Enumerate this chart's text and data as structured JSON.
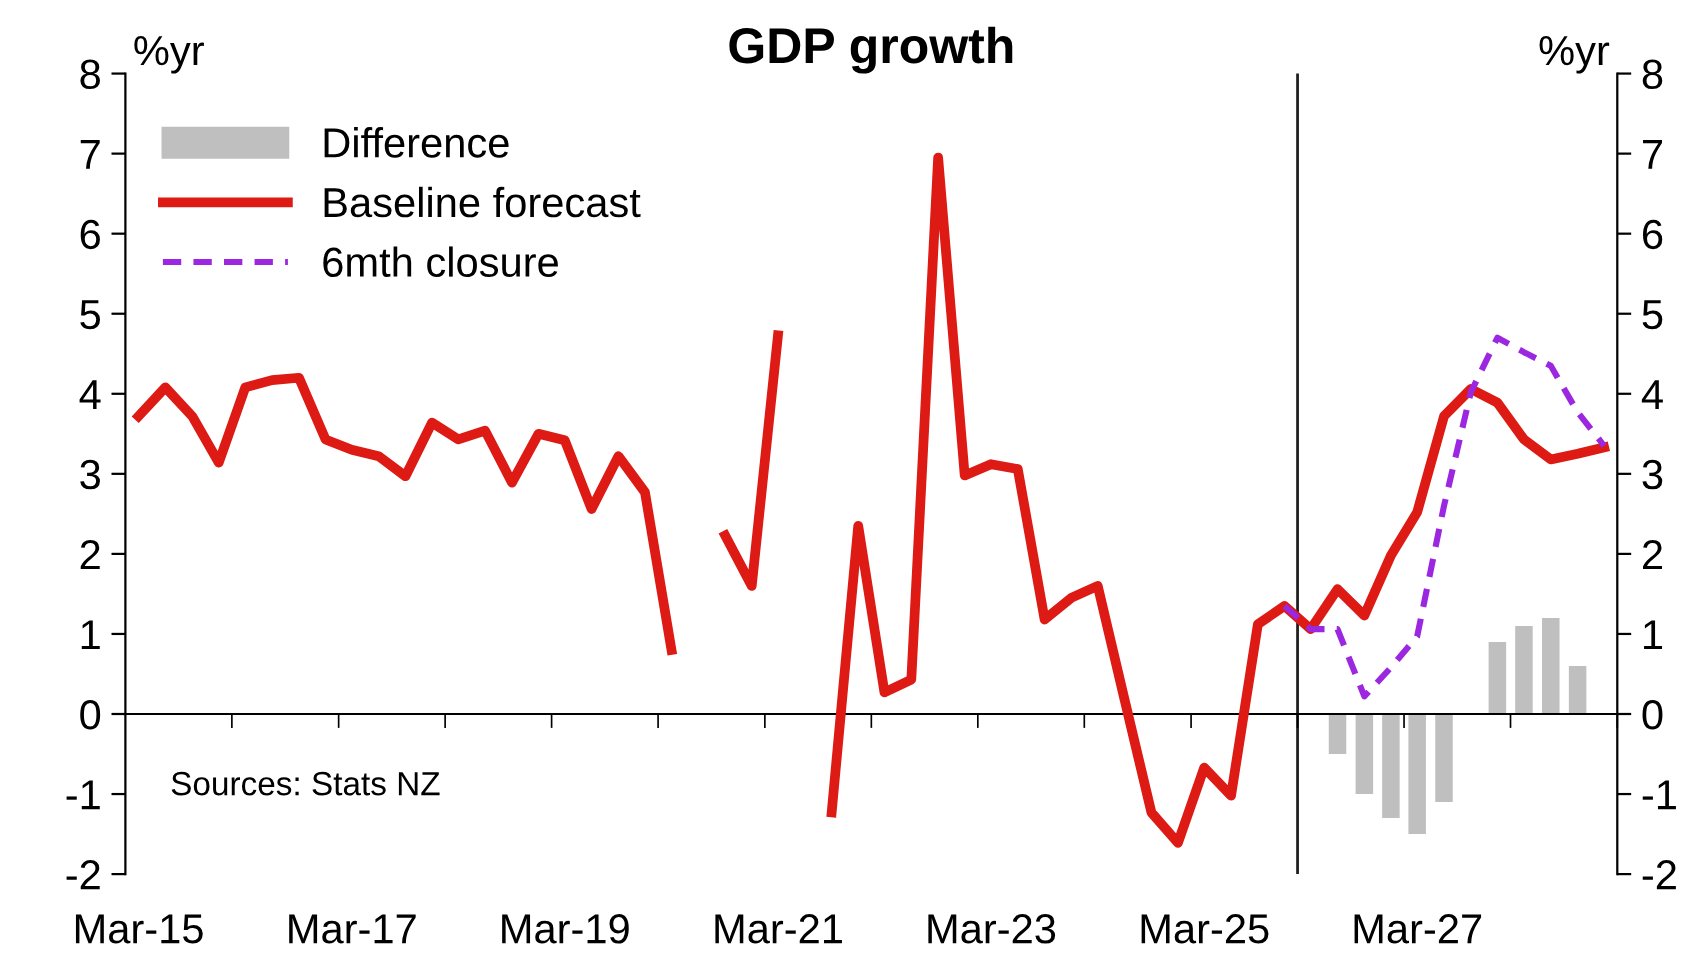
{
  "chart_data": {
    "type": "line",
    "title": "GDP growth",
    "ylabel": "%yr",
    "y2label": "%yr",
    "x": [
      "2015-03",
      "2015-06",
      "2015-09",
      "2015-12",
      "2016-03",
      "2016-06",
      "2016-09",
      "2016-12",
      "2017-03",
      "2017-06",
      "2017-09",
      "2017-12",
      "2018-03",
      "2018-06",
      "2018-09",
      "2018-12",
      "2019-03",
      "2019-06",
      "2019-09",
      "2019-12",
      "2020-03",
      "2020-06",
      "2020-09",
      "2020-12",
      "2021-03",
      "2021-06",
      "2021-09",
      "2021-12",
      "2022-03",
      "2022-06",
      "2022-09",
      "2022-12",
      "2023-03",
      "2023-06",
      "2023-09",
      "2023-12",
      "2024-03",
      "2024-06",
      "2024-09",
      "2024-12",
      "2025-03",
      "2025-06",
      "2025-09",
      "2025-12",
      "2026-03",
      "2026-06",
      "2026-09",
      "2026-12",
      "2027-03",
      "2027-06",
      "2027-09",
      "2027-12",
      "2028-03",
      "2028-06",
      "2028-09",
      "2028-12"
    ],
    "series": [
      {
        "name": "Difference",
        "type": "bar",
        "color": "#bfbfbf",
        "values": [
          null,
          null,
          null,
          null,
          null,
          null,
          null,
          null,
          null,
          null,
          null,
          null,
          null,
          null,
          null,
          null,
          null,
          null,
          null,
          null,
          null,
          null,
          null,
          null,
          null,
          null,
          null,
          null,
          null,
          null,
          null,
          null,
          null,
          null,
          null,
          null,
          null,
          null,
          null,
          null,
          null,
          null,
          null,
          null,
          null,
          -0.5,
          -1.0,
          -1.3,
          -1.5,
          -1.1,
          null,
          0.9,
          1.1,
          1.2,
          0.6,
          null
        ]
      },
      {
        "name": "Baseline forecast",
        "color": "#dd1a14",
        "line_style": "solid",
        "values": [
          3.72,
          4.08,
          3.72,
          3.14,
          4.08,
          4.17,
          4.2,
          3.43,
          3.3,
          3.22,
          2.97,
          3.64,
          3.43,
          3.54,
          2.89,
          3.5,
          3.42,
          2.56,
          3.22,
          2.77,
          0.8,
          null,
          2.23,
          1.6,
          4.73,
          null,
          -1.23,
          2.35,
          0.27,
          0.43,
          6.95,
          2.98,
          3.12,
          3.06,
          1.18,
          1.45,
          1.6,
          0.18,
          -1.23,
          -1.61,
          -0.67,
          -1.02,
          1.12,
          1.35,
          1.06,
          1.56,
          1.23,
          1.98,
          2.52,
          3.72,
          4.06,
          3.89,
          3.43,
          3.18,
          3.25,
          3.33
        ]
      },
      {
        "name": "6mth closure",
        "color": "#9b27e0",
        "line_style": "dashed",
        "values": [
          null,
          null,
          null,
          null,
          null,
          null,
          null,
          null,
          null,
          null,
          null,
          null,
          null,
          null,
          null,
          null,
          null,
          null,
          null,
          null,
          null,
          null,
          null,
          null,
          null,
          null,
          null,
          null,
          null,
          null,
          null,
          null,
          null,
          null,
          null,
          null,
          null,
          null,
          null,
          null,
          null,
          null,
          null,
          1.35,
          1.06,
          1.06,
          0.22,
          0.58,
          0.97,
          2.6,
          4.02,
          4.7,
          4.52,
          4.35,
          3.77,
          3.35
        ]
      }
    ],
    "xlim": [
      "2015-01-15",
      "2029-01-15"
    ],
    "xticks": [
      {
        "value": "2015-03",
        "label": "Mar-15"
      },
      {
        "value": "2017-03",
        "label": "Mar-17"
      },
      {
        "value": "2019-03",
        "label": "Mar-19"
      },
      {
        "value": "2021-03",
        "label": "Mar-21"
      },
      {
        "value": "2023-03",
        "label": "Mar-23"
      },
      {
        "value": "2025-03",
        "label": "Mar-25"
      },
      {
        "value": "2027-03",
        "label": "Mar-27"
      },
      {
        "value": "2016-01-15",
        "label": null
      },
      {
        "value": "2017-01-15",
        "label": null
      },
      {
        "value": "2018-01-15",
        "label": null
      },
      {
        "value": "2019-01-15",
        "label": null
      },
      {
        "value": "2020-01-15",
        "label": null
      },
      {
        "value": "2021-01-15",
        "label": null
      },
      {
        "value": "2022-01-15",
        "label": null
      },
      {
        "value": "2023-01-15",
        "label": null
      },
      {
        "value": "2024-01-15",
        "label": null
      },
      {
        "value": "2025-01-15",
        "label": null
      },
      {
        "value": "2026-01-15",
        "label": null
      },
      {
        "value": "2027-01-15",
        "label": null
      },
      {
        "value": "2028-01-15",
        "label": null
      },
      {
        "value": "2029-01-15",
        "label": null
      }
    ],
    "ylim": [
      -2,
      8
    ],
    "yticks": [
      -2,
      -1,
      0,
      1,
      2,
      3,
      4,
      5,
      6,
      7,
      8
    ],
    "y2lim": [
      -2,
      8
    ],
    "y2ticks": [
      -2,
      -1,
      0,
      1,
      2,
      3,
      4,
      5,
      6,
      7,
      8
    ],
    "ref_lines": [
      {
        "axis": "x",
        "value": "2026-01-15",
        "color": "#202020"
      }
    ],
    "legend": "top left",
    "annotations": [
      "Sources: Stats NZ"
    ]
  }
}
